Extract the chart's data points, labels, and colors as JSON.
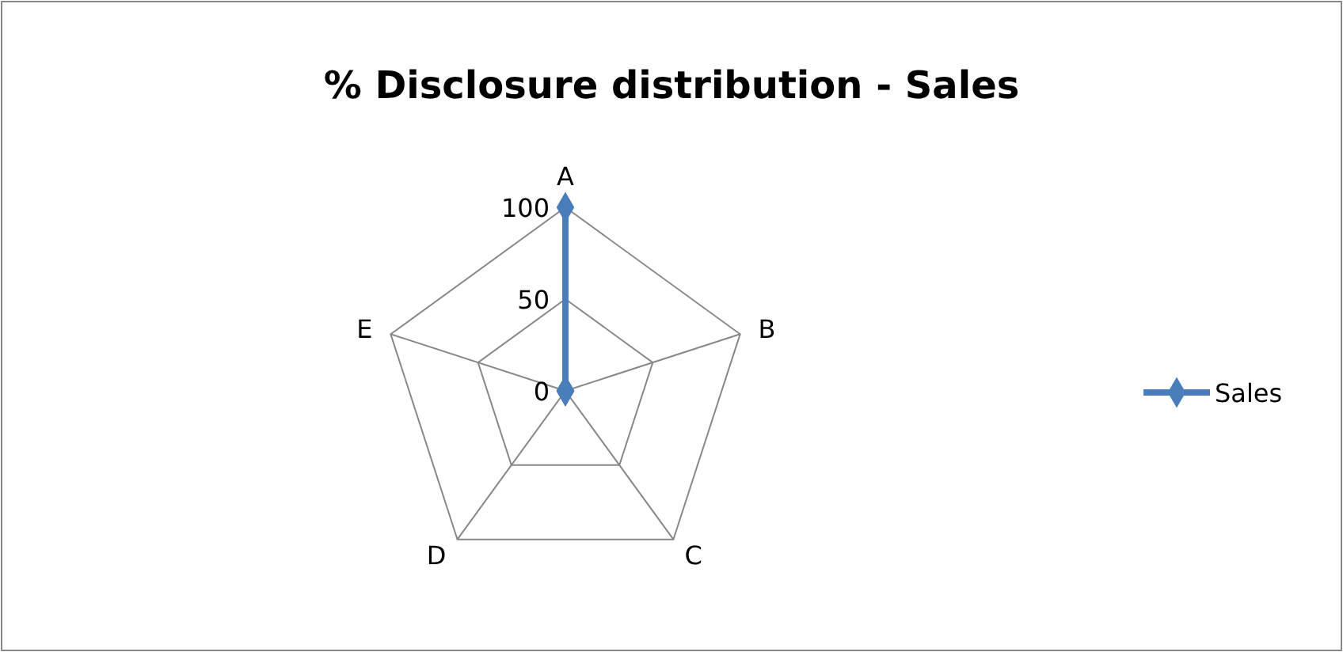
{
  "chart_data": {
    "type": "radar",
    "title": "% Disclosure distribution - Sales",
    "categories": [
      "A",
      "B",
      "C",
      "D",
      "E"
    ],
    "series": [
      {
        "name": "Sales",
        "color": "#4a7ebb",
        "values": [
          100,
          0,
          0,
          0,
          0
        ]
      }
    ],
    "ylim": [
      0,
      100
    ],
    "yticks": [
      0,
      50,
      100
    ],
    "grid": true,
    "legend": "right",
    "marker": "diamond"
  }
}
